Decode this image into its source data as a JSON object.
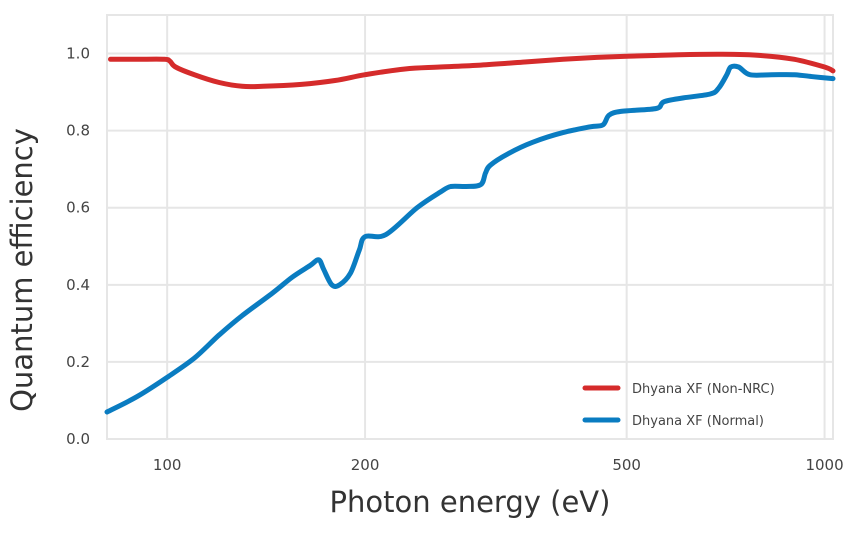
{
  "chart_data": {
    "type": "line",
    "title": "",
    "xlabel": "Photon energy (eV)",
    "ylabel": "Quantum efficiency",
    "x_scale": "log",
    "xlim": [
      81,
      1030
    ],
    "ylim": [
      0,
      1.1
    ],
    "x_ticks": [
      100,
      200,
      500,
      1000
    ],
    "x_tick_labels": [
      "100",
      "200",
      "500",
      "1000"
    ],
    "y_ticks": [
      0,
      0.2,
      0.4,
      0.6,
      0.8,
      1.0
    ],
    "y_tick_labels": [
      "0.0",
      "0.2",
      "0.4",
      "0.6",
      "0.8",
      "1.0"
    ],
    "grid": true,
    "legend_position": "bottom-right",
    "series": [
      {
        "name": "Dhyana XF (Non-NRC)",
        "color": "#d52b2b",
        "x": [
          82,
          90,
          99,
          101,
          103,
          110,
          120,
          130,
          140,
          160,
          180,
          200,
          230,
          260,
          300,
          350,
          400,
          450,
          500,
          550,
          600,
          700,
          800,
          900,
          1000,
          1030
        ],
        "y": [
          0.985,
          0.985,
          0.985,
          0.98,
          0.965,
          0.945,
          0.925,
          0.915,
          0.915,
          0.92,
          0.93,
          0.945,
          0.96,
          0.965,
          0.97,
          0.978,
          0.985,
          0.99,
          0.993,
          0.995,
          0.997,
          0.998,
          0.995,
          0.985,
          0.965,
          0.955
        ]
      },
      {
        "name": "Dhyana XF (Normal)",
        "color": "#0a7cc1",
        "x": [
          81,
          90,
          100,
          110,
          120,
          130,
          145,
          155,
          165,
          170,
          173,
          178,
          183,
          190,
          196,
          200,
          215,
          240,
          260,
          270,
          285,
          300,
          305,
          310,
          330,
          360,
          400,
          440,
          460,
          470,
          490,
          540,
          560,
          570,
          610,
          670,
          690,
          710,
          720,
          740,
          770,
          830,
          900,
          960,
          1030
        ],
        "y": [
          0.07,
          0.11,
          0.16,
          0.21,
          0.27,
          0.32,
          0.38,
          0.42,
          0.45,
          0.465,
          0.44,
          0.4,
          0.4,
          0.43,
          0.49,
          0.525,
          0.53,
          0.6,
          0.64,
          0.655,
          0.655,
          0.66,
          0.69,
          0.71,
          0.74,
          0.77,
          0.795,
          0.81,
          0.815,
          0.84,
          0.85,
          0.855,
          0.86,
          0.875,
          0.885,
          0.895,
          0.91,
          0.945,
          0.965,
          0.965,
          0.945,
          0.945,
          0.945,
          0.94,
          0.935
        ]
      }
    ]
  }
}
